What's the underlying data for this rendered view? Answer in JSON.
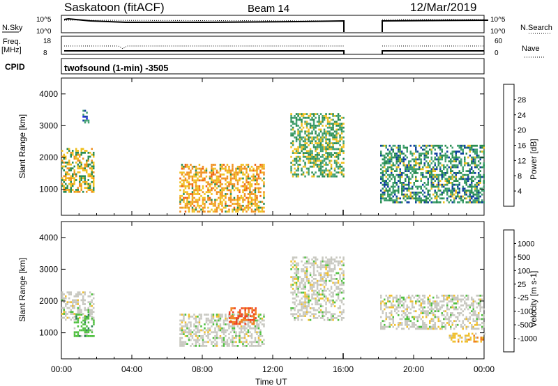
{
  "header": {
    "station": "Saskatoon (fitACF)",
    "beam": "Beam 14",
    "date": "12/Mar/2019"
  },
  "noise_panel": {
    "left_label": "N.Sky",
    "left_ticks": [
      "10^5",
      "10^0"
    ],
    "right_ticks": [
      "10^5",
      "10^0"
    ],
    "right_label": "N.Search"
  },
  "freq_panel": {
    "left_label_1": "Freq.",
    "left_label_2": "[MHz]",
    "left_ticks": [
      "18",
      "8"
    ],
    "right_ticks": [
      "60",
      "0"
    ],
    "right_label": "Nave"
  },
  "cpid": {
    "label": "CPID",
    "program": "twofsound (1-min) -3505"
  },
  "power_colorbar": {
    "label": "Power [dB]",
    "ticks": [
      "28",
      "24",
      "20",
      "16",
      "12",
      "8",
      "4"
    ],
    "colors": [
      "#e01010",
      "#f06010",
      "#f09020",
      "#f0c020",
      "#2a8c50",
      "#40a070",
      "#1040a0",
      "#2020f0"
    ]
  },
  "velocity_colorbar": {
    "label": "Velocity [m s-1]",
    "ticks": [
      "1000",
      "500",
      "100",
      "25",
      "-25",
      "-100",
      "-500",
      "-1000"
    ],
    "colors": [
      "#1a30a0",
      "#2a50c0",
      "#2a8050",
      "#50c040",
      "#c8c8c0",
      "#f0c030",
      "#f08020",
      "#f04020",
      "#e01010"
    ]
  },
  "xaxis": {
    "label": "Time UT",
    "ticks": [
      "00:00",
      "04:00",
      "08:00",
      "12:00",
      "16:00",
      "20:00",
      "00:00"
    ]
  },
  "chart_data": [
    {
      "type": "heatmap",
      "title": "Saskatoon (fitACF) Beam 14 12/Mar/2019",
      "xlabel": "Time UT",
      "ylabel": "Slant Range [km]",
      "colorbar": "Power [dB]",
      "xlim": [
        0,
        24
      ],
      "ylim": [
        180,
        4500
      ],
      "yticks": [
        1000,
        2000,
        3000,
        4000
      ],
      "data_gap_hours": [
        16.0,
        18.1
      ],
      "echo_regions": [
        {
          "t": [
            0.0,
            1.8
          ],
          "range_km": [
            900,
            2300
          ],
          "power_db": 18
        },
        {
          "t": [
            1.2,
            1.5
          ],
          "range_km": [
            3100,
            3500
          ],
          "power_db": 8
        },
        {
          "t": [
            6.7,
            11.5
          ],
          "range_km": [
            300,
            1800
          ],
          "power_db": 20
        },
        {
          "t": [
            13.0,
            16.0
          ],
          "range_km": [
            1400,
            3400
          ],
          "power_db": 14
        },
        {
          "t": [
            18.1,
            24.0
          ],
          "range_km": [
            600,
            2400
          ],
          "power_db": 12
        }
      ]
    },
    {
      "type": "heatmap",
      "xlabel": "Time UT",
      "ylabel": "Slant Range [km]",
      "colorbar": "Velocity [m s-1]",
      "xlim": [
        0,
        24
      ],
      "ylim": [
        180,
        4500
      ],
      "yticks": [
        1000,
        2000,
        3000,
        4000
      ],
      "data_gap_hours": [
        16.0,
        18.1
      ],
      "echo_regions": [
        {
          "t": [
            0.0,
            1.8
          ],
          "range_km": [
            1400,
            2300
          ],
          "velocity_ms": 0
        },
        {
          "t": [
            0.7,
            1.8
          ],
          "range_km": [
            900,
            1600
          ],
          "velocity_ms": 60
        },
        {
          "t": [
            6.7,
            11.5
          ],
          "range_km": [
            600,
            1600
          ],
          "velocity_ms": 0
        },
        {
          "t": [
            9.5,
            11.0
          ],
          "range_km": [
            1300,
            1800
          ],
          "velocity_ms": -300
        },
        {
          "t": [
            13.0,
            16.0
          ],
          "range_km": [
            1400,
            3400
          ],
          "velocity_ms": 0
        },
        {
          "t": [
            18.1,
            24.0
          ],
          "range_km": [
            1100,
            2200
          ],
          "velocity_ms": 0
        },
        {
          "t": [
            22.0,
            24.0
          ],
          "range_km": [
            700,
            1000
          ],
          "velocity_ms": -60
        }
      ]
    }
  ]
}
